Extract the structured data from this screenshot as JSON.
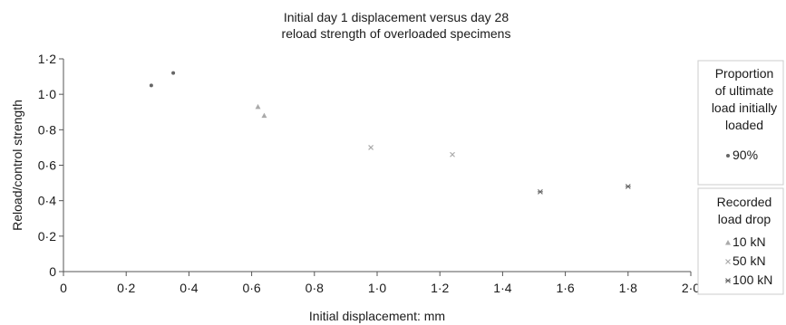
{
  "chart_data": {
    "type": "scatter",
    "title": [
      "Initial day 1 displacement versus day 28",
      "reload strength of overloaded specimens"
    ],
    "xlabel": "Initial displacement: mm",
    "ylabel": "Reload/control strength",
    "xlim": [
      0,
      2.0
    ],
    "ylim": [
      0,
      1.2
    ],
    "x_ticks": [
      "0",
      "0·2",
      "0·4",
      "0·6",
      "0·8",
      "1·0",
      "1·2",
      "1·4",
      "1·6",
      "1·8",
      "2·0"
    ],
    "y_ticks": [
      "0",
      "0·2",
      "0·4",
      "0·6",
      "0·8",
      "1·0",
      "1·2"
    ],
    "grid": false,
    "legend": {
      "placement": "right",
      "groups": [
        {
          "title": [
            "Proportion",
            "of ultimate",
            "load initially",
            "loaded"
          ],
          "entries": [
            {
              "label": "90%",
              "marker": "dot"
            }
          ]
        },
        {
          "title": [
            "Recorded",
            "load drop"
          ],
          "entries": [
            {
              "label": "10 kN",
              "marker": "triangle"
            },
            {
              "label": "50 kN",
              "marker": "cross"
            },
            {
              "label": "100 kN",
              "marker": "star"
            }
          ]
        }
      ]
    },
    "series": [
      {
        "marker": "dot",
        "points": [
          [
            0.28,
            1.05
          ],
          [
            0.35,
            1.12
          ]
        ]
      },
      {
        "marker": "triangle",
        "points": [
          [
            0.62,
            0.93
          ],
          [
            0.64,
            0.88
          ]
        ]
      },
      {
        "marker": "cross",
        "points": [
          [
            0.98,
            0.7
          ],
          [
            1.24,
            0.66
          ]
        ]
      },
      {
        "marker": "star",
        "points": [
          [
            1.52,
            0.45
          ],
          [
            1.8,
            0.48
          ]
        ]
      }
    ],
    "colors": {
      "axis": "#555555",
      "marker_dark": "#666666",
      "marker_light": "#aaaaaa",
      "legend_border": "#cccccc"
    }
  }
}
